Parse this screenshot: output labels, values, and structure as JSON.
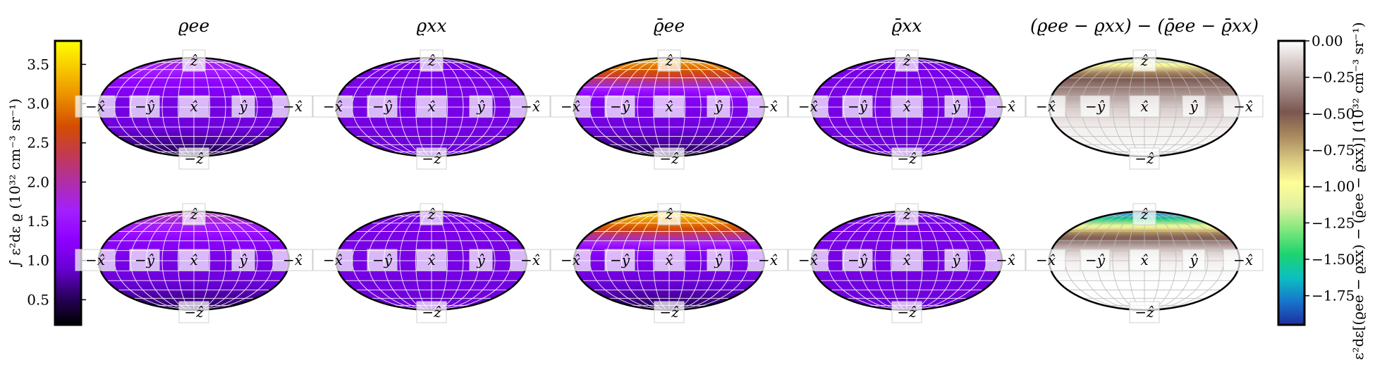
{
  "chart_data": {
    "type": "heatmap",
    "projection": "mollweide",
    "grid": true,
    "rows": 2,
    "columns": 5,
    "titles": [
      "ϱee",
      "ϱxx",
      "ϱ̄ee",
      "ϱ̄xx",
      "(ϱee − ϱxx) − (ϱ̄ee − ϱ̄xx)"
    ],
    "direction_labels": {
      "top": "ẑ",
      "bottom": "−ẑ",
      "middle": [
        "−x̂",
        "−ŷ",
        "x̂",
        "ŷ",
        "−x̂"
      ]
    },
    "colorbars": [
      {
        "name": "left",
        "label": "∫ ε²dε ϱ (10³² cm⁻³ sr⁻¹)",
        "ticks": [
          0.5,
          1.0,
          1.5,
          2.0,
          2.5,
          3.0,
          3.5
        ],
        "tick_labels": [
          "0.5",
          "1.0",
          "1.5",
          "2.0",
          "2.5",
          "3.0",
          "3.5"
        ],
        "range": [
          0.18,
          3.8
        ],
        "colormap": "gnuplot",
        "colormap_stops": [
          "#000000",
          "#2a0060",
          "#6a00d6",
          "#8e00ff",
          "#a21fff",
          "#b02ea9",
          "#c23a50",
          "#d44d00",
          "#ea8c00",
          "#f7c700",
          "#ffff00"
        ]
      },
      {
        "name": "right",
        "label": "∫ ε²dε[(ϱee − ϱxx) − (ϱ̄ee − ϱ̄xx)] (10³² cm⁻³ sr⁻¹)",
        "ticks": [
          0.0,
          -0.25,
          -0.5,
          -0.75,
          -1.0,
          -1.25,
          -1.5,
          -1.75
        ],
        "tick_labels": [
          "0.00",
          "−0.25",
          "−0.50",
          "−0.75",
          "−1.00",
          "−1.25",
          "−1.50",
          "−1.75"
        ],
        "range": [
          -1.95,
          0.0
        ],
        "colormap": "terrain_r",
        "colormap_stops": [
          "#1f2e9e",
          "#1776cc",
          "#0cc0c0",
          "#1ed36e",
          "#7ee77d",
          "#dff0a0",
          "#fefe98",
          "#d7c680",
          "#a8895e",
          "#7a5650",
          "#a68f8a",
          "#d3c6c4",
          "#ffffff"
        ]
      }
    ],
    "panels": [
      {
        "row": 1,
        "col": 1,
        "title": "ϱee",
        "lat_profile": [
          [
            90,
            1.75
          ],
          [
            60,
            1.65
          ],
          [
            30,
            1.2
          ],
          [
            0,
            1.0
          ],
          [
            -30,
            0.95
          ],
          [
            -60,
            0.65
          ],
          [
            -90,
            0.35
          ]
        ]
      },
      {
        "row": 1,
        "col": 2,
        "title": "ϱxx",
        "lat_profile": [
          [
            90,
            1.05
          ],
          [
            60,
            1.05
          ],
          [
            30,
            1.05
          ],
          [
            0,
            1.05
          ],
          [
            -30,
            1.0
          ],
          [
            -60,
            0.95
          ],
          [
            -90,
            0.85
          ]
        ]
      },
      {
        "row": 1,
        "col": 3,
        "title": "ϱ̄ee",
        "lat_profile": [
          [
            90,
            3.3
          ],
          [
            70,
            3.05
          ],
          [
            50,
            2.55
          ],
          [
            35,
            1.9
          ],
          [
            20,
            1.3
          ],
          [
            0,
            1.1
          ],
          [
            -30,
            0.95
          ],
          [
            -60,
            0.7
          ],
          [
            -90,
            0.35
          ]
        ]
      },
      {
        "row": 1,
        "col": 4,
        "title": "ϱ̄xx",
        "lat_profile": [
          [
            90,
            1.05
          ],
          [
            60,
            1.05
          ],
          [
            30,
            1.05
          ],
          [
            0,
            1.05
          ],
          [
            -30,
            1.0
          ],
          [
            -60,
            0.95
          ],
          [
            -90,
            0.8
          ]
        ]
      },
      {
        "row": 1,
        "col": 5,
        "title": "(ϱee − ϱxx) − (ϱ̄ee − ϱ̄xx)",
        "lat_profile": [
          [
            90,
            -1.15
          ],
          [
            70,
            -1.0
          ],
          [
            55,
            -0.65
          ],
          [
            40,
            -0.45
          ],
          [
            25,
            -0.35
          ],
          [
            0,
            -0.15
          ],
          [
            -30,
            -0.05
          ],
          [
            -90,
            0.0
          ]
        ]
      },
      {
        "row": 2,
        "col": 1,
        "title": "ϱee",
        "lat_profile": [
          [
            90,
            1.95
          ],
          [
            60,
            1.75
          ],
          [
            30,
            1.25
          ],
          [
            0,
            1.05
          ],
          [
            -30,
            0.95
          ],
          [
            -60,
            0.7
          ],
          [
            -90,
            0.4
          ]
        ]
      },
      {
        "row": 2,
        "col": 2,
        "title": "ϱxx",
        "lat_profile": [
          [
            90,
            1.05
          ],
          [
            60,
            1.05
          ],
          [
            30,
            1.05
          ],
          [
            0,
            1.05
          ],
          [
            -30,
            1.0
          ],
          [
            -60,
            0.95
          ],
          [
            -90,
            0.85
          ]
        ]
      },
      {
        "row": 2,
        "col": 3,
        "title": "ϱ̄ee",
        "lat_profile": [
          [
            90,
            3.6
          ],
          [
            70,
            3.25
          ],
          [
            50,
            2.7
          ],
          [
            35,
            2.0
          ],
          [
            20,
            1.35
          ],
          [
            0,
            1.1
          ],
          [
            -30,
            0.95
          ],
          [
            -60,
            0.7
          ],
          [
            -90,
            0.35
          ]
        ]
      },
      {
        "row": 2,
        "col": 4,
        "title": "ϱ̄xx",
        "lat_profile": [
          [
            90,
            1.05
          ],
          [
            60,
            1.05
          ],
          [
            30,
            1.05
          ],
          [
            0,
            1.05
          ],
          [
            -30,
            1.0
          ],
          [
            -60,
            0.95
          ],
          [
            -90,
            0.8
          ]
        ]
      },
      {
        "row": 2,
        "col": 5,
        "title": "(ϱee − ϱxx) − (ϱ̄ee − ϱ̄xx)",
        "lat_profile": [
          [
            90,
            -1.8
          ],
          [
            75,
            -1.7
          ],
          [
            60,
            -1.25
          ],
          [
            45,
            -0.7
          ],
          [
            30,
            -0.4
          ],
          [
            15,
            -0.15
          ],
          [
            0,
            -0.05
          ],
          [
            -30,
            0.0
          ],
          [
            -90,
            0.0
          ]
        ]
      }
    ]
  }
}
